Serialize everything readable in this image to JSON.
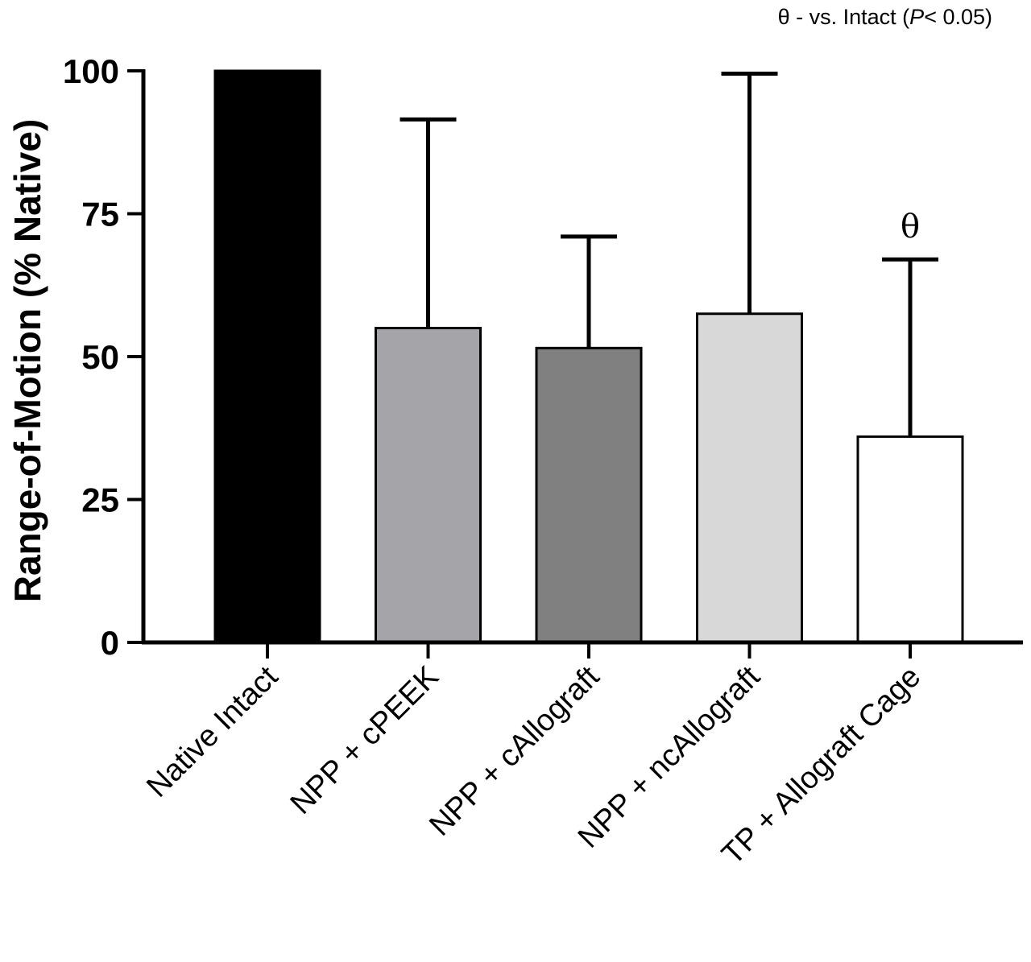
{
  "chart_data": {
    "type": "bar",
    "categories": [
      "Native Intact",
      "NPP + cPEEK",
      "NPP + cAllograft",
      "NPP + ncAllograft",
      "TP + Allograft Cage"
    ],
    "values": [
      100,
      55,
      51.5,
      57.5,
      36
    ],
    "error_upper": [
      100,
      91.5,
      71,
      99.5,
      67
    ],
    "bar_colors": [
      "#000000",
      "#a5a5a9",
      "#808080",
      "#d8d8d8",
      "#ffffff"
    ],
    "ylabel": "Range-of-Motion (% Native)",
    "xlabel": "",
    "ylim": [
      0,
      100
    ],
    "yticks": [
      0,
      25,
      50,
      75,
      100
    ],
    "significance_markers": [
      "",
      "",
      "",
      "",
      "θ"
    ],
    "note": {
      "prefix": "θ - vs. Intact (",
      "p": "P",
      "suffix": "< 0.05)"
    },
    "grid": false,
    "legend": "none"
  }
}
